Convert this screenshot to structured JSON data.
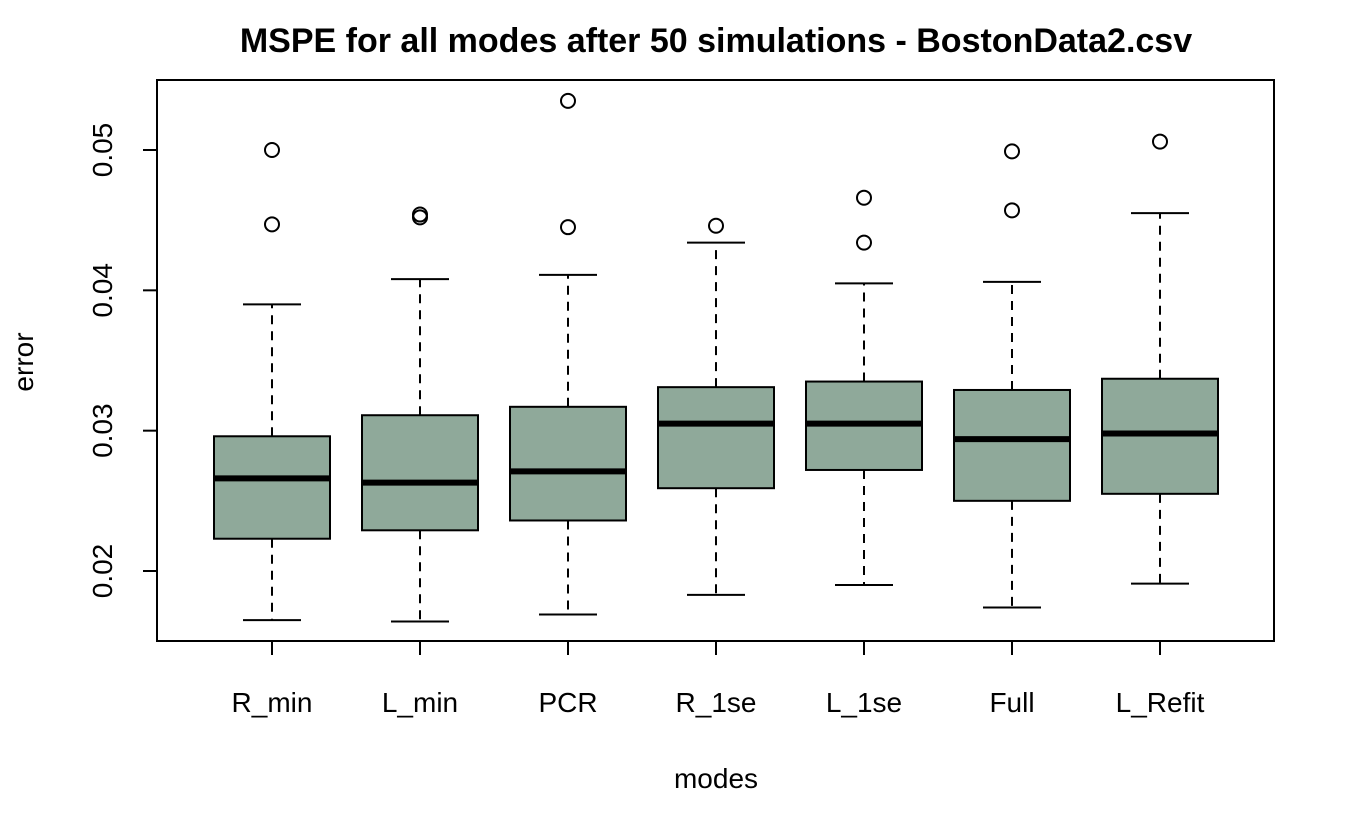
{
  "chart_data": {
    "type": "boxplot",
    "title": "MSPE for all modes after 50 simulations - BostonData2.csv",
    "xlabel": "modes",
    "ylabel": "error",
    "ylim": [
      0.0148,
      0.0548
    ],
    "yticks": [
      0.02,
      0.03,
      0.04,
      0.05
    ],
    "ytick_labels": [
      "0.02",
      "0.03",
      "0.04",
      "0.05"
    ],
    "grid": false,
    "legend": "none",
    "box_color": "#8fa99a",
    "categories": [
      "R_min",
      "L_min",
      "PCR",
      "R_1se",
      "L_1se",
      "Full",
      "L_Refit"
    ],
    "boxes": [
      {
        "name": "R_min",
        "whisker_low": 0.0165,
        "q1": 0.0223,
        "median": 0.0266,
        "q3": 0.0296,
        "whisker_high": 0.039,
        "outliers": [
          0.0447,
          0.05
        ]
      },
      {
        "name": "L_min",
        "whisker_low": 0.0164,
        "q1": 0.0229,
        "median": 0.0263,
        "q3": 0.0311,
        "whisker_high": 0.0408,
        "outliers": [
          0.0452,
          0.0454
        ]
      },
      {
        "name": "PCR",
        "whisker_low": 0.0169,
        "q1": 0.0236,
        "median": 0.0271,
        "q3": 0.0317,
        "whisker_high": 0.0411,
        "outliers": [
          0.0445,
          0.0535
        ]
      },
      {
        "name": "R_1se",
        "whisker_low": 0.0183,
        "q1": 0.0259,
        "median": 0.0305,
        "q3": 0.0331,
        "whisker_high": 0.0434,
        "outliers": [
          0.0446
        ]
      },
      {
        "name": "L_1se",
        "whisker_low": 0.019,
        "q1": 0.0272,
        "median": 0.0305,
        "q3": 0.0335,
        "whisker_high": 0.0405,
        "outliers": [
          0.0434,
          0.0466
        ]
      },
      {
        "name": "Full",
        "whisker_low": 0.0174,
        "q1": 0.025,
        "median": 0.0294,
        "q3": 0.0329,
        "whisker_high": 0.0406,
        "outliers": [
          0.0457,
          0.0499
        ]
      },
      {
        "name": "L_Refit",
        "whisker_low": 0.0191,
        "q1": 0.0255,
        "median": 0.0298,
        "q3": 0.0337,
        "whisker_high": 0.0455,
        "outliers": [
          0.0506
        ]
      }
    ]
  }
}
